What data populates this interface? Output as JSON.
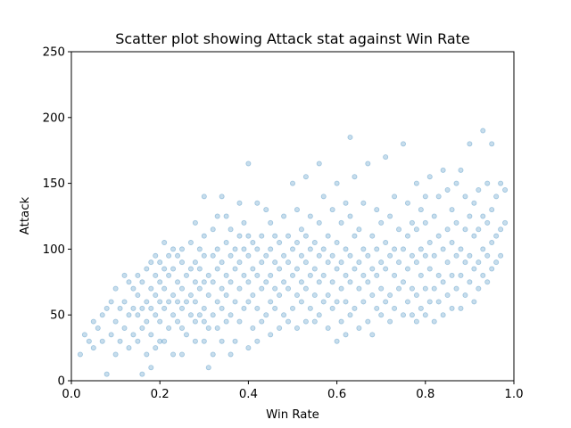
{
  "chart_data": {
    "type": "scatter",
    "title": "Scatter plot showing Attack stat against Win Rate",
    "xlabel": "Win Rate",
    "ylabel": "Attack",
    "xlim": [
      0.0,
      1.0
    ],
    "ylim": [
      0,
      250
    ],
    "xticks": [
      "0.0",
      "0.2",
      "0.4",
      "0.6",
      "0.8",
      "1.0"
    ],
    "yticks": [
      "0",
      "50",
      "100",
      "150",
      "200",
      "250"
    ],
    "grid": false,
    "legend": "none",
    "point_color": "#1f77b4",
    "point_alpha": 0.25,
    "points": [
      [
        0.02,
        20
      ],
      [
        0.03,
        35
      ],
      [
        0.04,
        30
      ],
      [
        0.05,
        25
      ],
      [
        0.05,
        45
      ],
      [
        0.06,
        40
      ],
      [
        0.07,
        50
      ],
      [
        0.07,
        30
      ],
      [
        0.08,
        5
      ],
      [
        0.08,
        55
      ],
      [
        0.09,
        35
      ],
      [
        0.09,
        60
      ],
      [
        0.1,
        20
      ],
      [
        0.1,
        45
      ],
      [
        0.1,
        70
      ],
      [
        0.11,
        30
      ],
      [
        0.11,
        55
      ],
      [
        0.12,
        40
      ],
      [
        0.12,
        60
      ],
      [
        0.12,
        80
      ],
      [
        0.13,
        25
      ],
      [
        0.13,
        50
      ],
      [
        0.13,
        75
      ],
      [
        0.14,
        35
      ],
      [
        0.14,
        55
      ],
      [
        0.14,
        70
      ],
      [
        0.15,
        30
      ],
      [
        0.15,
        50
      ],
      [
        0.15,
        65
      ],
      [
        0.15,
        80
      ],
      [
        0.16,
        5
      ],
      [
        0.16,
        40
      ],
      [
        0.16,
        55
      ],
      [
        0.16,
        75
      ],
      [
        0.17,
        20
      ],
      [
        0.17,
        45
      ],
      [
        0.17,
        60
      ],
      [
        0.17,
        85
      ],
      [
        0.18,
        10
      ],
      [
        0.18,
        35
      ],
      [
        0.18,
        55
      ],
      [
        0.18,
        70
      ],
      [
        0.18,
        90
      ],
      [
        0.19,
        25
      ],
      [
        0.19,
        50
      ],
      [
        0.19,
        65
      ],
      [
        0.19,
        80
      ],
      [
        0.19,
        95
      ],
      [
        0.2,
        30
      ],
      [
        0.2,
        45
      ],
      [
        0.2,
        60
      ],
      [
        0.2,
        75
      ],
      [
        0.2,
        90
      ],
      [
        0.21,
        30
      ],
      [
        0.21,
        55
      ],
      [
        0.21,
        70
      ],
      [
        0.21,
        85
      ],
      [
        0.21,
        105
      ],
      [
        0.22,
        40
      ],
      [
        0.22,
        60
      ],
      [
        0.22,
        80
      ],
      [
        0.22,
        95
      ],
      [
        0.23,
        20
      ],
      [
        0.23,
        50
      ],
      [
        0.23,
        65
      ],
      [
        0.23,
        85
      ],
      [
        0.23,
        100
      ],
      [
        0.24,
        45
      ],
      [
        0.24,
        60
      ],
      [
        0.24,
        75
      ],
      [
        0.24,
        95
      ],
      [
        0.25,
        20
      ],
      [
        0.25,
        40
      ],
      [
        0.25,
        55
      ],
      [
        0.25,
        70
      ],
      [
        0.25,
        90
      ],
      [
        0.25,
        100
      ],
      [
        0.26,
        35
      ],
      [
        0.26,
        60
      ],
      [
        0.26,
        80
      ],
      [
        0.27,
        50
      ],
      [
        0.27,
        65
      ],
      [
        0.27,
        85
      ],
      [
        0.27,
        105
      ],
      [
        0.28,
        30
      ],
      [
        0.28,
        45
      ],
      [
        0.28,
        60
      ],
      [
        0.28,
        75
      ],
      [
        0.28,
        90
      ],
      [
        0.28,
        120
      ],
      [
        0.29,
        50
      ],
      [
        0.29,
        70
      ],
      [
        0.29,
        85
      ],
      [
        0.29,
        100
      ],
      [
        0.3,
        30
      ],
      [
        0.3,
        45
      ],
      [
        0.3,
        55
      ],
      [
        0.3,
        75
      ],
      [
        0.3,
        95
      ],
      [
        0.3,
        110
      ],
      [
        0.3,
        140
      ],
      [
        0.31,
        10
      ],
      [
        0.31,
        40
      ],
      [
        0.31,
        65
      ],
      [
        0.31,
        80
      ],
      [
        0.32,
        20
      ],
      [
        0.32,
        50
      ],
      [
        0.32,
        75
      ],
      [
        0.32,
        95
      ],
      [
        0.32,
        115
      ],
      [
        0.33,
        40
      ],
      [
        0.33,
        60
      ],
      [
        0.33,
        85
      ],
      [
        0.33,
        100
      ],
      [
        0.33,
        125
      ],
      [
        0.34,
        30
      ],
      [
        0.34,
        55
      ],
      [
        0.34,
        70
      ],
      [
        0.34,
        90
      ],
      [
        0.34,
        140
      ],
      [
        0.35,
        45
      ],
      [
        0.35,
        65
      ],
      [
        0.35,
        80
      ],
      [
        0.35,
        105
      ],
      [
        0.35,
        125
      ],
      [
        0.36,
        20
      ],
      [
        0.36,
        50
      ],
      [
        0.36,
        75
      ],
      [
        0.36,
        95
      ],
      [
        0.36,
        115
      ],
      [
        0.37,
        30
      ],
      [
        0.37,
        60
      ],
      [
        0.37,
        85
      ],
      [
        0.37,
        100
      ],
      [
        0.38,
        45
      ],
      [
        0.38,
        70
      ],
      [
        0.38,
        90
      ],
      [
        0.38,
        110
      ],
      [
        0.38,
        135
      ],
      [
        0.39,
        55
      ],
      [
        0.39,
        80
      ],
      [
        0.39,
        100
      ],
      [
        0.39,
        120
      ],
      [
        0.4,
        25
      ],
      [
        0.4,
        60
      ],
      [
        0.4,
        75
      ],
      [
        0.4,
        95
      ],
      [
        0.4,
        110
      ],
      [
        0.4,
        165
      ],
      [
        0.41,
        40
      ],
      [
        0.41,
        65
      ],
      [
        0.41,
        85
      ],
      [
        0.41,
        105
      ],
      [
        0.42,
        30
      ],
      [
        0.42,
        55
      ],
      [
        0.42,
        80
      ],
      [
        0.42,
        100
      ],
      [
        0.42,
        135
      ],
      [
        0.43,
        45
      ],
      [
        0.43,
        70
      ],
      [
        0.43,
        90
      ],
      [
        0.43,
        110
      ],
      [
        0.44,
        50
      ],
      [
        0.44,
        75
      ],
      [
        0.44,
        95
      ],
      [
        0.44,
        130
      ],
      [
        0.45,
        35
      ],
      [
        0.45,
        60
      ],
      [
        0.45,
        80
      ],
      [
        0.45,
        100
      ],
      [
        0.45,
        120
      ],
      [
        0.46,
        55
      ],
      [
        0.46,
        70
      ],
      [
        0.46,
        90
      ],
      [
        0.46,
        110
      ],
      [
        0.47,
        40
      ],
      [
        0.47,
        65
      ],
      [
        0.47,
        85
      ],
      [
        0.47,
        105
      ],
      [
        0.48,
        50
      ],
      [
        0.48,
        75
      ],
      [
        0.48,
        95
      ],
      [
        0.48,
        125
      ],
      [
        0.49,
        45
      ],
      [
        0.49,
        70
      ],
      [
        0.49,
        90
      ],
      [
        0.49,
        110
      ],
      [
        0.5,
        55
      ],
      [
        0.5,
        80
      ],
      [
        0.5,
        100
      ],
      [
        0.5,
        150
      ],
      [
        0.51,
        40
      ],
      [
        0.51,
        65
      ],
      [
        0.51,
        85
      ],
      [
        0.51,
        105
      ],
      [
        0.51,
        130
      ],
      [
        0.52,
        60
      ],
      [
        0.52,
        75
      ],
      [
        0.52,
        95
      ],
      [
        0.52,
        115
      ],
      [
        0.53,
        45
      ],
      [
        0.53,
        70
      ],
      [
        0.53,
        90
      ],
      [
        0.53,
        110
      ],
      [
        0.53,
        155
      ],
      [
        0.54,
        55
      ],
      [
        0.54,
        80
      ],
      [
        0.54,
        100
      ],
      [
        0.54,
        125
      ],
      [
        0.55,
        45
      ],
      [
        0.55,
        65
      ],
      [
        0.55,
        85
      ],
      [
        0.55,
        105
      ],
      [
        0.56,
        50
      ],
      [
        0.56,
        75
      ],
      [
        0.56,
        95
      ],
      [
        0.56,
        120
      ],
      [
        0.56,
        165
      ],
      [
        0.57,
        60
      ],
      [
        0.57,
        80
      ],
      [
        0.57,
        100
      ],
      [
        0.57,
        140
      ],
      [
        0.58,
        40
      ],
      [
        0.58,
        65
      ],
      [
        0.58,
        90
      ],
      [
        0.58,
        110
      ],
      [
        0.59,
        55
      ],
      [
        0.59,
        75
      ],
      [
        0.59,
        95
      ],
      [
        0.59,
        130
      ],
      [
        0.6,
        30
      ],
      [
        0.6,
        60
      ],
      [
        0.6,
        85
      ],
      [
        0.6,
        105
      ],
      [
        0.6,
        150
      ],
      [
        0.61,
        45
      ],
      [
        0.61,
        70
      ],
      [
        0.61,
        90
      ],
      [
        0.61,
        120
      ],
      [
        0.62,
        35
      ],
      [
        0.62,
        60
      ],
      [
        0.62,
        80
      ],
      [
        0.62,
        100
      ],
      [
        0.62,
        135
      ],
      [
        0.63,
        50
      ],
      [
        0.63,
        75
      ],
      [
        0.63,
        95
      ],
      [
        0.63,
        125
      ],
      [
        0.63,
        185
      ],
      [
        0.64,
        55
      ],
      [
        0.64,
        85
      ],
      [
        0.64,
        110
      ],
      [
        0.64,
        155
      ],
      [
        0.65,
        40
      ],
      [
        0.65,
        70
      ],
      [
        0.65,
        90
      ],
      [
        0.65,
        115
      ],
      [
        0.66,
        60
      ],
      [
        0.66,
        80
      ],
      [
        0.66,
        100
      ],
      [
        0.66,
        135
      ],
      [
        0.67,
        45
      ],
      [
        0.67,
        75
      ],
      [
        0.67,
        95
      ],
      [
        0.67,
        165
      ],
      [
        0.68,
        35
      ],
      [
        0.68,
        65
      ],
      [
        0.68,
        85
      ],
      [
        0.68,
        110
      ],
      [
        0.69,
        55
      ],
      [
        0.69,
        80
      ],
      [
        0.69,
        100
      ],
      [
        0.69,
        130
      ],
      [
        0.7,
        50
      ],
      [
        0.7,
        70
      ],
      [
        0.7,
        90
      ],
      [
        0.7,
        120
      ],
      [
        0.71,
        60
      ],
      [
        0.71,
        85
      ],
      [
        0.71,
        105
      ],
      [
        0.71,
        170
      ],
      [
        0.72,
        45
      ],
      [
        0.72,
        65
      ],
      [
        0.72,
        95
      ],
      [
        0.72,
        125
      ],
      [
        0.73,
        55
      ],
      [
        0.73,
        80
      ],
      [
        0.73,
        100
      ],
      [
        0.73,
        140
      ],
      [
        0.74,
        70
      ],
      [
        0.74,
        90
      ],
      [
        0.74,
        115
      ],
      [
        0.75,
        50
      ],
      [
        0.75,
        75
      ],
      [
        0.75,
        100
      ],
      [
        0.75,
        180
      ],
      [
        0.76,
        60
      ],
      [
        0.76,
        85
      ],
      [
        0.76,
        110
      ],
      [
        0.76,
        135
      ],
      [
        0.77,
        50
      ],
      [
        0.77,
        70
      ],
      [
        0.77,
        95
      ],
      [
        0.77,
        120
      ],
      [
        0.78,
        45
      ],
      [
        0.78,
        65
      ],
      [
        0.78,
        90
      ],
      [
        0.78,
        115
      ],
      [
        0.78,
        150
      ],
      [
        0.79,
        55
      ],
      [
        0.79,
        80
      ],
      [
        0.79,
        100
      ],
      [
        0.79,
        130
      ],
      [
        0.8,
        50
      ],
      [
        0.8,
        70
      ],
      [
        0.8,
        95
      ],
      [
        0.8,
        120
      ],
      [
        0.8,
        140
      ],
      [
        0.81,
        60
      ],
      [
        0.81,
        85
      ],
      [
        0.81,
        105
      ],
      [
        0.81,
        155
      ],
      [
        0.82,
        45
      ],
      [
        0.82,
        70
      ],
      [
        0.82,
        95
      ],
      [
        0.82,
        125
      ],
      [
        0.83,
        60
      ],
      [
        0.83,
        80
      ],
      [
        0.83,
        110
      ],
      [
        0.83,
        140
      ],
      [
        0.84,
        50
      ],
      [
        0.84,
        75
      ],
      [
        0.84,
        100
      ],
      [
        0.84,
        160
      ],
      [
        0.85,
        65
      ],
      [
        0.85,
        90
      ],
      [
        0.85,
        115
      ],
      [
        0.85,
        145
      ],
      [
        0.86,
        55
      ],
      [
        0.86,
        80
      ],
      [
        0.86,
        105
      ],
      [
        0.86,
        130
      ],
      [
        0.87,
        70
      ],
      [
        0.87,
        95
      ],
      [
        0.87,
        120
      ],
      [
        0.87,
        150
      ],
      [
        0.88,
        55
      ],
      [
        0.88,
        80
      ],
      [
        0.88,
        100
      ],
      [
        0.88,
        160
      ],
      [
        0.89,
        65
      ],
      [
        0.89,
        90
      ],
      [
        0.89,
        115
      ],
      [
        0.89,
        140
      ],
      [
        0.9,
        75
      ],
      [
        0.9,
        95
      ],
      [
        0.9,
        125
      ],
      [
        0.9,
        180
      ],
      [
        0.91,
        60
      ],
      [
        0.91,
        85
      ],
      [
        0.91,
        110
      ],
      [
        0.91,
        135
      ],
      [
        0.92,
        70
      ],
      [
        0.92,
        90
      ],
      [
        0.92,
        115
      ],
      [
        0.92,
        145
      ],
      [
        0.93,
        80
      ],
      [
        0.93,
        100
      ],
      [
        0.93,
        125
      ],
      [
        0.93,
        190
      ],
      [
        0.94,
        75
      ],
      [
        0.94,
        95
      ],
      [
        0.94,
        120
      ],
      [
        0.94,
        150
      ],
      [
        0.95,
        85
      ],
      [
        0.95,
        105
      ],
      [
        0.95,
        130
      ],
      [
        0.95,
        180
      ],
      [
        0.96,
        90
      ],
      [
        0.96,
        110
      ],
      [
        0.96,
        140
      ],
      [
        0.97,
        95
      ],
      [
        0.97,
        115
      ],
      [
        0.97,
        150
      ],
      [
        0.98,
        120
      ],
      [
        0.98,
        145
      ]
    ]
  }
}
